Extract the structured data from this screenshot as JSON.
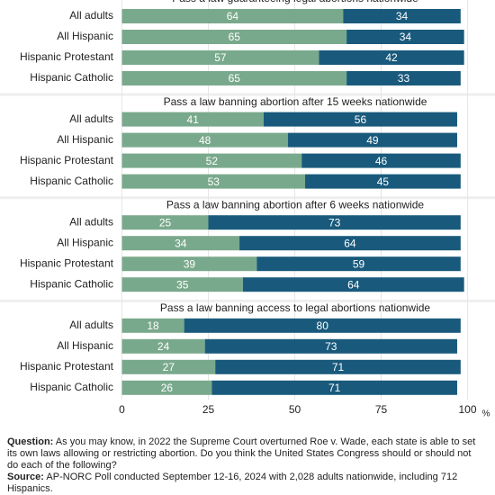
{
  "chart_data": {
    "type": "bar",
    "orientation": "horizontal",
    "stacked": true,
    "xlim": [
      0,
      100
    ],
    "xticks": [
      0,
      25,
      50,
      75,
      100
    ],
    "xlabel": "%",
    "grid": true,
    "panels": [
      {
        "title": "Pass a law guaranteeing legal abortions nationwide",
        "categories": [
          "All adults",
          "All Hispanic",
          "Hispanic Protestant",
          "Hispanic Catholic"
        ],
        "series": [
          {
            "color": "#79a98c",
            "values": [
              64,
              65,
              57,
              65
            ]
          },
          {
            "color": "#195a7c",
            "values": [
              34,
              34,
              42,
              33
            ]
          }
        ]
      },
      {
        "title": "Pass a law banning abortion after 15 weeks nationwide",
        "categories": [
          "All adults",
          "All Hispanic",
          "Hispanic Protestant",
          "Hispanic Catholic"
        ],
        "series": [
          {
            "color": "#79a98c",
            "values": [
              41,
              48,
              52,
              53
            ]
          },
          {
            "color": "#195a7c",
            "values": [
              56,
              49,
              46,
              45
            ]
          }
        ]
      },
      {
        "title": "Pass a law banning abortion after 6 weeks nationwide",
        "categories": [
          "All adults",
          "All Hispanic",
          "Hispanic Protestant",
          "Hispanic Catholic"
        ],
        "series": [
          {
            "color": "#79a98c",
            "values": [
              25,
              34,
              39,
              35
            ]
          },
          {
            "color": "#195a7c",
            "values": [
              73,
              64,
              59,
              64
            ]
          }
        ]
      },
      {
        "title": "Pass a law banning access to legal abortions nationwide",
        "categories": [
          "All adults",
          "All Hispanic",
          "Hispanic Protestant",
          "Hispanic Catholic"
        ],
        "series": [
          {
            "color": "#79a98c",
            "values": [
              18,
              24,
              27,
              26
            ]
          },
          {
            "color": "#195a7c",
            "values": [
              80,
              73,
              71,
              71
            ]
          }
        ]
      }
    ]
  },
  "notes": {
    "question_label": "Question:",
    "question": "As you may know, in 2022 the Supreme Court overturned Roe v. Wade, each state is able to set its own laws allowing or restricting abortion. Do you think the United States Congress should or should not do each of the following?",
    "source_label": "Source:",
    "source": "AP-NORC Poll conducted September 12-16, 2024 with 2,028 adults nationwide, including 712 Hispanics."
  }
}
